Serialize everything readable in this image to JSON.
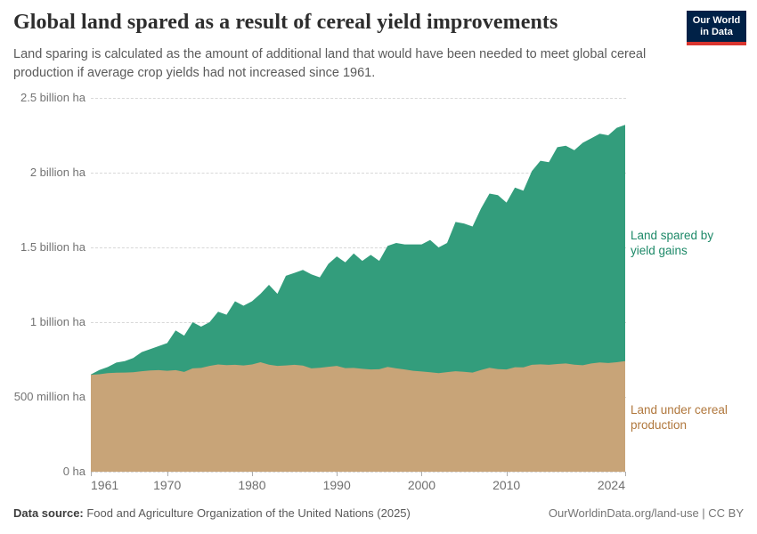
{
  "header": {
    "title": "Global land spared as a result of cereal yield improvements",
    "subtitle": "Land sparing is calculated as the amount of additional land that would have been needed to meet global cereal production if average crop yields had not increased since 1961.",
    "logo_line1": "Our World",
    "logo_line2": "in Data",
    "logo_bg_color": "#002147",
    "logo_stripe_color": "#d9352f"
  },
  "chart_data": {
    "type": "area",
    "stacked": true,
    "unit": "ha",
    "x": [
      1961,
      1962,
      1963,
      1964,
      1965,
      1966,
      1967,
      1968,
      1969,
      1970,
      1971,
      1972,
      1973,
      1974,
      1975,
      1976,
      1977,
      1978,
      1979,
      1980,
      1981,
      1982,
      1983,
      1984,
      1985,
      1986,
      1987,
      1988,
      1989,
      1990,
      1991,
      1992,
      1993,
      1994,
      1995,
      1996,
      1997,
      1998,
      1999,
      2000,
      2001,
      2002,
      2003,
      2004,
      2005,
      2006,
      2007,
      2008,
      2009,
      2010,
      2011,
      2012,
      2013,
      2014,
      2015,
      2016,
      2017,
      2018,
      2019,
      2020,
      2021,
      2022,
      2023,
      2024
    ],
    "xlim": [
      1961,
      2024
    ],
    "ylim": [
      0,
      2.5
    ],
    "ylim_unit": "billion ha",
    "grid": "dashed-horizontal",
    "legend_position": "right-edge-labels",
    "series": [
      {
        "name": "Land under cereal production",
        "color": "#c8a478",
        "label_color": "#b0773c",
        "values_billion_ha": [
          0.648,
          0.652,
          0.659,
          0.662,
          0.663,
          0.665,
          0.672,
          0.677,
          0.679,
          0.675,
          0.679,
          0.667,
          0.691,
          0.694,
          0.708,
          0.717,
          0.713,
          0.715,
          0.711,
          0.717,
          0.732,
          0.716,
          0.708,
          0.711,
          0.715,
          0.71,
          0.691,
          0.695,
          0.702,
          0.708,
          0.693,
          0.694,
          0.688,
          0.684,
          0.685,
          0.701,
          0.691,
          0.684,
          0.675,
          0.67,
          0.665,
          0.659,
          0.666,
          0.672,
          0.668,
          0.663,
          0.68,
          0.695,
          0.686,
          0.684,
          0.699,
          0.698,
          0.715,
          0.718,
          0.715,
          0.72,
          0.724,
          0.716,
          0.712,
          0.724,
          0.731,
          0.727,
          0.732,
          0.74
        ]
      },
      {
        "name": "Land spared by yield gains",
        "color": "#339d7c",
        "label_color": "#1d8968",
        "values_billion_ha": [
          0.002,
          0.028,
          0.041,
          0.068,
          0.077,
          0.095,
          0.128,
          0.143,
          0.161,
          0.185,
          0.266,
          0.243,
          0.309,
          0.276,
          0.292,
          0.353,
          0.337,
          0.425,
          0.399,
          0.423,
          0.458,
          0.534,
          0.482,
          0.599,
          0.615,
          0.64,
          0.629,
          0.605,
          0.688,
          0.732,
          0.707,
          0.766,
          0.722,
          0.766,
          0.725,
          0.809,
          0.839,
          0.836,
          0.845,
          0.85,
          0.885,
          0.841,
          0.864,
          0.998,
          0.992,
          0.977,
          1.08,
          1.165,
          1.164,
          1.116,
          1.201,
          1.182,
          1.295,
          1.362,
          1.355,
          1.45,
          1.456,
          1.434,
          1.488,
          1.506,
          1.529,
          1.523,
          1.568,
          1.58
        ]
      }
    ],
    "yticks": {
      "values": [
        0,
        0.5,
        1,
        1.5,
        2,
        2.5
      ],
      "labels": [
        "0 ha",
        "500 million ha",
        "1 billion ha",
        "1.5 billion ha",
        "2 billion ha",
        "2.5 billion ha"
      ]
    },
    "xticks": [
      1961,
      1970,
      1980,
      1990,
      2000,
      2010,
      2024
    ]
  },
  "annotations": {
    "spared_label": "Land spared by\nyield gains",
    "production_label": "Land under cereal\nproduction"
  },
  "footer": {
    "source_label": "Data source:",
    "source_text": " Food and Agriculture Organization of the United Nations (2025)",
    "link_text": "OurWorldinData.org/land-use | CC BY"
  }
}
